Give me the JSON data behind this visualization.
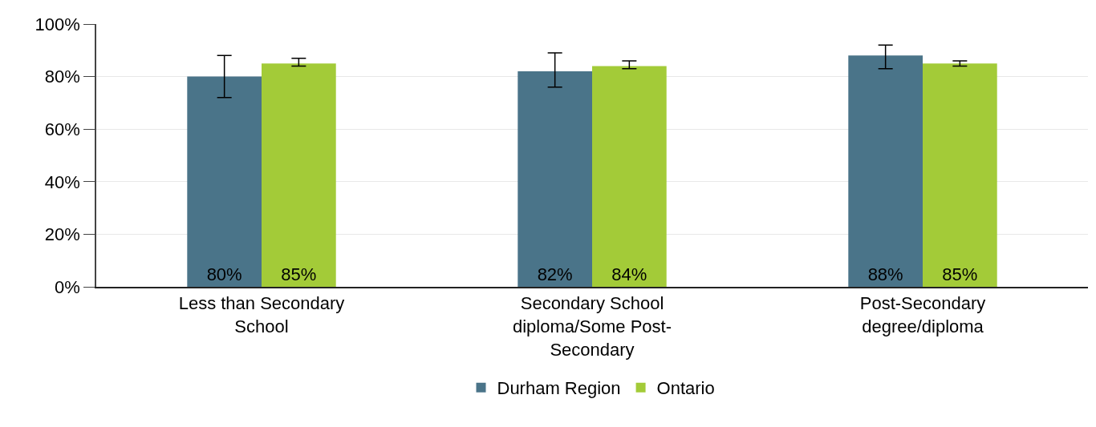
{
  "chart_data": {
    "type": "bar",
    "categories": [
      "Less than Secondary School",
      "Secondary School diploma/Some Post-Secondary",
      "Post-Secondary degree/diploma"
    ],
    "series": [
      {
        "name": "Durham Region",
        "color": "#4a7489",
        "values": [
          80,
          82,
          88
        ],
        "errors": [
          [
            72,
            88
          ],
          [
            76,
            89
          ],
          [
            83,
            92
          ]
        ],
        "value_labels": [
          "80%",
          "82%",
          "88%"
        ]
      },
      {
        "name": "Ontario",
        "color": "#a3cb38",
        "values": [
          85,
          84,
          85
        ],
        "errors": [
          [
            84,
            87
          ],
          [
            83,
            86
          ],
          [
            84,
            86
          ]
        ],
        "value_labels": [
          "85%",
          "84%",
          "85%"
        ]
      }
    ],
    "ylim": [
      0,
      100
    ],
    "yticks": [
      {
        "value": 0,
        "label": "0%"
      },
      {
        "value": 20,
        "label": "20%"
      },
      {
        "value": 40,
        "label": "40%"
      },
      {
        "value": 60,
        "label": "60%"
      },
      {
        "value": 80,
        "label": "80%"
      },
      {
        "value": 100,
        "label": "100%"
      }
    ],
    "grid": "y",
    "legend": "bottom"
  }
}
